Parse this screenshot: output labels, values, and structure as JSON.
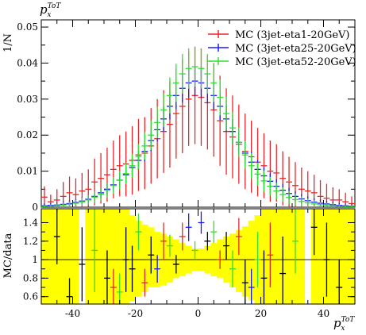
{
  "chart_data": [
    {
      "type": "line",
      "panel": "main",
      "title": "",
      "title_symbol": "p",
      "title_subscript": "x",
      "title_superscript": "ToT",
      "ylabel": "1/N",
      "xlim": [
        -50,
        50
      ],
      "ylim": [
        0,
        0.052
      ],
      "x_ticks": [
        -40,
        -20,
        0,
        20,
        40
      ],
      "y_ticks": [
        0,
        0.01,
        0.02,
        0.03,
        0.04,
        0.05
      ],
      "y_tick_labels": [
        "0",
        "0.01",
        "0.02",
        "0.03",
        "0.04",
        "0.05"
      ],
      "legend_position": "top-right",
      "x": [
        -49,
        -47,
        -45,
        -43,
        -41,
        -39,
        -37,
        -35,
        -33,
        -31,
        -29,
        -27,
        -25,
        -23,
        -21,
        -19,
        -17,
        -15,
        -13,
        -11,
        -9,
        -7,
        -5,
        -3,
        -1,
        1,
        3,
        5,
        7,
        9,
        11,
        13,
        15,
        17,
        19,
        21,
        23,
        25,
        27,
        29,
        31,
        33,
        35,
        37,
        39,
        41,
        43,
        45,
        47,
        49
      ],
      "series": [
        {
          "name": "MC (3jet-eta1-20GeV)",
          "color": "#e8262a",
          "values": [
            0.0028,
            0.0015,
            0.002,
            0.003,
            0.004,
            0.0035,
            0.0045,
            0.005,
            0.007,
            0.008,
            0.009,
            0.0105,
            0.0115,
            0.012,
            0.013,
            0.0145,
            0.015,
            0.017,
            0.019,
            0.021,
            0.023,
            0.026,
            0.028,
            0.03,
            0.031,
            0.0305,
            0.029,
            0.027,
            0.024,
            0.021,
            0.0195,
            0.0175,
            0.0155,
            0.014,
            0.0125,
            0.0115,
            0.01,
            0.0095,
            0.008,
            0.007,
            0.006,
            0.005,
            0.0045,
            0.004,
            0.003,
            0.0025,
            0.002,
            0.002,
            0.0015,
            0.001
          ],
          "errors": [
            0.003,
            0.002,
            0.003,
            0.004,
            0.0045,
            0.0045,
            0.005,
            0.0055,
            0.0065,
            0.007,
            0.0075,
            0.008,
            0.0085,
            0.009,
            0.0095,
            0.01,
            0.01,
            0.0105,
            0.011,
            0.0115,
            0.012,
            0.0125,
            0.013,
            0.013,
            0.0135,
            0.0135,
            0.013,
            0.013,
            0.0125,
            0.012,
            0.0115,
            0.011,
            0.0105,
            0.01,
            0.0095,
            0.009,
            0.0085,
            0.008,
            0.0075,
            0.007,
            0.0065,
            0.006,
            0.0055,
            0.005,
            0.0045,
            0.004,
            0.0035,
            0.003,
            0.0025,
            0.002
          ]
        },
        {
          "name": "MC (3jet-eta25-20GeV)",
          "color": "#1a1aff",
          "values": [
            0.0004,
            0.0005,
            0.0006,
            0.0008,
            0.001,
            0.0013,
            0.0017,
            0.0022,
            0.003,
            0.004,
            0.005,
            0.0062,
            0.0075,
            0.009,
            0.011,
            0.013,
            0.0155,
            0.0185,
            0.0215,
            0.0245,
            0.028,
            0.031,
            0.033,
            0.0345,
            0.035,
            0.0345,
            0.033,
            0.031,
            0.028,
            0.0245,
            0.021,
            0.018,
            0.015,
            0.0125,
            0.0105,
            0.0087,
            0.0072,
            0.0058,
            0.0047,
            0.0038,
            0.003,
            0.0023,
            0.0018,
            0.0014,
            0.0011,
            0.0009,
            0.0007,
            0.0005,
            0.0004,
            0.0003
          ],
          "errors": [
            0.0006,
            0.0006,
            0.0007,
            0.0008,
            0.0009,
            0.001,
            0.0011,
            0.0012,
            0.0013,
            0.0014,
            0.0016,
            0.0018,
            0.002,
            0.0022,
            0.0024,
            0.0026,
            0.0028,
            0.003,
            0.0032,
            0.0034,
            0.0036,
            0.0038,
            0.004,
            0.0042,
            0.0042,
            0.0042,
            0.0042,
            0.004,
            0.0038,
            0.0036,
            0.0034,
            0.0032,
            0.003,
            0.0028,
            0.0026,
            0.0024,
            0.0022,
            0.002,
            0.0018,
            0.0016,
            0.0014,
            0.0013,
            0.0012,
            0.0011,
            0.001,
            0.0009,
            0.0008,
            0.0007,
            0.0006,
            0.0006
          ]
        },
        {
          "name": "MC (3jet-eta52-20GeV)",
          "color": "#33dd33",
          "values": [
            0.0002,
            0.0003,
            0.0004,
            0.0006,
            0.0008,
            0.0011,
            0.0015,
            0.002,
            0.0028,
            0.0036,
            0.0047,
            0.006,
            0.0075,
            0.0093,
            0.0115,
            0.014,
            0.017,
            0.02,
            0.0235,
            0.027,
            0.031,
            0.0345,
            0.037,
            0.0385,
            0.039,
            0.0385,
            0.037,
            0.0345,
            0.0305,
            0.026,
            0.022,
            0.018,
            0.0145,
            0.0115,
            0.0092,
            0.0073,
            0.0058,
            0.0045,
            0.0035,
            0.0027,
            0.0021,
            0.0016,
            0.0012,
            0.0009,
            0.0007,
            0.0005,
            0.0004,
            0.0003,
            0.0002,
            0.0002
          ],
          "errors": [
            0.0004,
            0.0005,
            0.0006,
            0.0007,
            0.0008,
            0.001,
            0.0012,
            0.0014,
            0.0016,
            0.0018,
            0.002,
            0.0023,
            0.0026,
            0.0029,
            0.0032,
            0.0035,
            0.0038,
            0.0041,
            0.0044,
            0.0047,
            0.005,
            0.0053,
            0.0055,
            0.0056,
            0.0056,
            0.0056,
            0.0055,
            0.0053,
            0.005,
            0.0047,
            0.0044,
            0.0041,
            0.0038,
            0.0035,
            0.0032,
            0.0029,
            0.0026,
            0.0023,
            0.002,
            0.0018,
            0.0016,
            0.0014,
            0.0012,
            0.001,
            0.0008,
            0.0007,
            0.0006,
            0.0005,
            0.0004,
            0.0004
          ]
        }
      ]
    },
    {
      "type": "scatter",
      "panel": "ratio",
      "ylabel": "MC/data",
      "xlabel_symbol": "p",
      "xlabel_subscript": "x",
      "xlabel_superscript": "ToT",
      "xlim": [
        -50,
        50
      ],
      "ylim": [
        0.52,
        1.55
      ],
      "x_ticks": [
        -40,
        -20,
        0,
        20,
        40
      ],
      "x_tick_labels": [
        "-40",
        "-20",
        "0",
        "20",
        "40"
      ],
      "y_ticks": [
        0.6,
        0.8,
        1.0,
        1.2,
        1.4
      ],
      "y_tick_labels": [
        "0.6",
        "0.8",
        "1",
        "1.2",
        "1.4"
      ],
      "reference_line": 1,
      "band_color": "#ffff00",
      "band": {
        "x": [
          -49,
          -47,
          -45,
          -43,
          -41,
          -39,
          -37,
          -35,
          -33,
          -31,
          -29,
          -27,
          -25,
          -23,
          -21,
          -19,
          -17,
          -15,
          -13,
          -11,
          -9,
          -7,
          -5,
          -3,
          -1,
          1,
          3,
          5,
          7,
          9,
          11,
          13,
          15,
          17,
          19,
          21,
          23,
          25,
          27,
          29,
          31,
          33,
          35,
          37,
          39,
          41,
          43,
          45,
          47,
          49
        ],
        "low": [
          0.52,
          0.52,
          0.52,
          0.52,
          0.52,
          0.52,
          0.52,
          0.52,
          0.52,
          0.52,
          0.52,
          0.52,
          0.52,
          0.52,
          0.55,
          0.6,
          0.65,
          0.7,
          0.7,
          0.72,
          0.75,
          0.8,
          0.82,
          0.85,
          0.88,
          0.88,
          0.85,
          0.82,
          0.8,
          0.75,
          0.7,
          0.65,
          0.6,
          0.56,
          0.52,
          0.52,
          0.52,
          0.52,
          0.52,
          0.52,
          0.52,
          0.52,
          0.52,
          0.52,
          0.52,
          0.52,
          0.52,
          0.52,
          0.52,
          0.52
        ],
        "high": [
          1.55,
          1.55,
          1.55,
          1.55,
          1.55,
          1.55,
          1.55,
          1.55,
          1.55,
          1.55,
          1.55,
          1.55,
          1.55,
          1.55,
          1.48,
          1.42,
          1.38,
          1.35,
          1.3,
          1.28,
          1.25,
          1.22,
          1.18,
          1.15,
          1.12,
          1.12,
          1.15,
          1.18,
          1.22,
          1.25,
          1.28,
          1.32,
          1.36,
          1.42,
          1.48,
          1.55,
          1.55,
          1.55,
          1.55,
          1.55,
          1.55,
          1.55,
          1.55,
          1.55,
          1.55,
          1.55,
          1.55,
          1.55,
          1.55,
          1.55
        ]
      },
      "gap_x": [
        -37,
        35
      ],
      "points": [
        {
          "x": -45,
          "y": 1.25,
          "err": 0.3,
          "color": "#000000"
        },
        {
          "x": -41,
          "y": 0.6,
          "err": 0.2,
          "color": "#000000"
        },
        {
          "x": -37,
          "y": 0.95,
          "err": 0.4,
          "color": "#000000"
        },
        {
          "x": -33,
          "y": 1.1,
          "err": 0.45,
          "color": "#33dd33"
        },
        {
          "x": -29,
          "y": 0.8,
          "err": 0.3,
          "color": "#000000"
        },
        {
          "x": -27,
          "y": 0.7,
          "err": 0.2,
          "color": "#e8262a"
        },
        {
          "x": -25,
          "y": 0.65,
          "err": 0.2,
          "color": "#33dd33"
        },
        {
          "x": -23,
          "y": 1.0,
          "err": 0.35,
          "color": "#000000"
        },
        {
          "x": -21,
          "y": 0.9,
          "err": 0.25,
          "color": "#000000"
        },
        {
          "x": -19,
          "y": 1.3,
          "err": 0.2,
          "color": "#33dd33"
        },
        {
          "x": -17,
          "y": 0.75,
          "err": 0.15,
          "color": "#e8262a"
        },
        {
          "x": -15,
          "y": 1.05,
          "err": 0.2,
          "color": "#000000"
        },
        {
          "x": -13,
          "y": 0.9,
          "err": 0.15,
          "color": "#1a1aff"
        },
        {
          "x": -11,
          "y": 1.2,
          "err": 0.2,
          "color": "#e8262a"
        },
        {
          "x": -9,
          "y": 1.15,
          "err": 0.12,
          "color": "#33dd33"
        },
        {
          "x": -7,
          "y": 0.95,
          "err": 0.1,
          "color": "#000000"
        },
        {
          "x": -5,
          "y": 1.25,
          "err": 0.15,
          "color": "#e8262a"
        },
        {
          "x": -3,
          "y": 1.35,
          "err": 0.15,
          "color": "#1a1aff"
        },
        {
          "x": -1,
          "y": 1.1,
          "err": 0.1,
          "color": "#33dd33"
        },
        {
          "x": 1,
          "y": 1.4,
          "err": 0.12,
          "color": "#1a1aff"
        },
        {
          "x": 3,
          "y": 1.2,
          "err": 0.1,
          "color": "#000000"
        },
        {
          "x": 5,
          "y": 1.3,
          "err": 0.12,
          "color": "#33dd33"
        },
        {
          "x": 7,
          "y": 1.0,
          "err": 0.1,
          "color": "#e8262a"
        },
        {
          "x": 9,
          "y": 1.15,
          "err": 0.15,
          "color": "#000000"
        },
        {
          "x": 11,
          "y": 0.9,
          "err": 0.2,
          "color": "#33dd33"
        },
        {
          "x": 13,
          "y": 1.25,
          "err": 0.2,
          "color": "#e8262a"
        },
        {
          "x": 15,
          "y": 0.75,
          "err": 0.25,
          "color": "#000000"
        },
        {
          "x": 17,
          "y": 0.7,
          "err": 0.2,
          "color": "#1a1aff"
        },
        {
          "x": 19,
          "y": 1.0,
          "err": 0.3,
          "color": "#33dd33"
        },
        {
          "x": 21,
          "y": 0.8,
          "err": 0.3,
          "color": "#000000"
        },
        {
          "x": 23,
          "y": 1.05,
          "err": 0.35,
          "color": "#e8262a"
        },
        {
          "x": 27,
          "y": 0.85,
          "err": 0.4,
          "color": "#000000"
        },
        {
          "x": 31,
          "y": 1.2,
          "err": 0.35,
          "color": "#33dd33"
        },
        {
          "x": 37,
          "y": 1.35,
          "err": 0.3,
          "color": "#000000"
        },
        {
          "x": 41,
          "y": 1.0,
          "err": 0.4,
          "color": "#000000"
        },
        {
          "x": 45,
          "y": 0.7,
          "err": 0.3,
          "color": "#000000"
        }
      ]
    }
  ]
}
